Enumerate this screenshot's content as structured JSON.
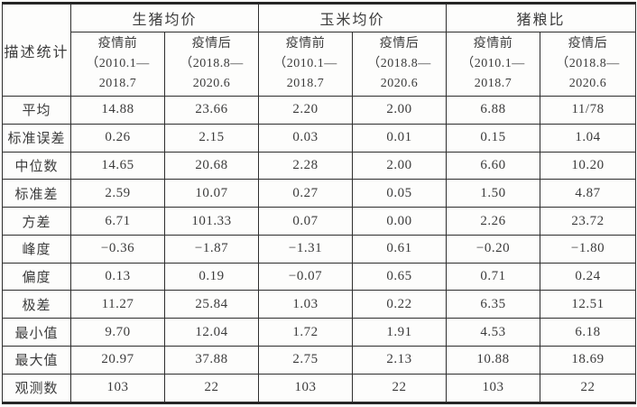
{
  "table": {
    "corner_header": "描述统计",
    "groups": [
      {
        "label": "生猪均价"
      },
      {
        "label": "玉米均价"
      },
      {
        "label": "猪粮比"
      }
    ],
    "sub_headers": [
      {
        "period": "疫情前",
        "range_start": "（2010.1—",
        "range_end": "2018.7"
      },
      {
        "period": "疫情后",
        "range_start": "（2018.8—",
        "range_end": "2020.6"
      },
      {
        "period": "疫情前",
        "range_start": "（2010.1—",
        "range_end": "2018.7"
      },
      {
        "period": "疫情后",
        "range_start": "（2018.8—",
        "range_end": "2020.6"
      },
      {
        "period": "疫情前",
        "range_start": "（2010.1—",
        "range_end": "2018.7"
      },
      {
        "period": "疫情后",
        "range_start": "（2018.8—",
        "range_end": "2020.6"
      }
    ],
    "rows": [
      {
        "label": "平均",
        "values": [
          "14.88",
          "23.66",
          "2.20",
          "2.00",
          "6.88",
          "11/78"
        ]
      },
      {
        "label": "标准误差",
        "values": [
          "0.26",
          "2.15",
          "0.03",
          "0.01",
          "0.15",
          "1.04"
        ]
      },
      {
        "label": "中位数",
        "values": [
          "14.65",
          "20.68",
          "2.28",
          "2.00",
          "6.60",
          "10.20"
        ]
      },
      {
        "label": "标准差",
        "values": [
          "2.59",
          "10.07",
          "0.27",
          "0.05",
          "1.50",
          "4.87"
        ]
      },
      {
        "label": "方差",
        "values": [
          "6.71",
          "101.33",
          "0.07",
          "0.00",
          "2.26",
          "23.72"
        ]
      },
      {
        "label": "峰度",
        "values": [
          "−0.36",
          "−1.87",
          "−1.31",
          "0.61",
          "−0.20",
          "−1.80"
        ]
      },
      {
        "label": "偏度",
        "values": [
          "0.13",
          "0.19",
          "−0.07",
          "0.65",
          "0.71",
          "0.24"
        ]
      },
      {
        "label": "极差",
        "values": [
          "11.27",
          "25.84",
          "1.03",
          "0.22",
          "6.35",
          "12.51"
        ]
      },
      {
        "label": "最小值",
        "values": [
          "9.70",
          "12.04",
          "1.72",
          "1.91",
          "4.53",
          "6.18"
        ]
      },
      {
        "label": "最大值",
        "values": [
          "20.97",
          "37.88",
          "2.75",
          "2.13",
          "10.88",
          "18.69"
        ]
      },
      {
        "label": "观测数",
        "values": [
          "103",
          "22",
          "103",
          "22",
          "103",
          "22"
        ]
      }
    ],
    "line_color": "#2e2e2e",
    "text_color": "#3b3b3b",
    "background_color": "#fdfdfc"
  }
}
